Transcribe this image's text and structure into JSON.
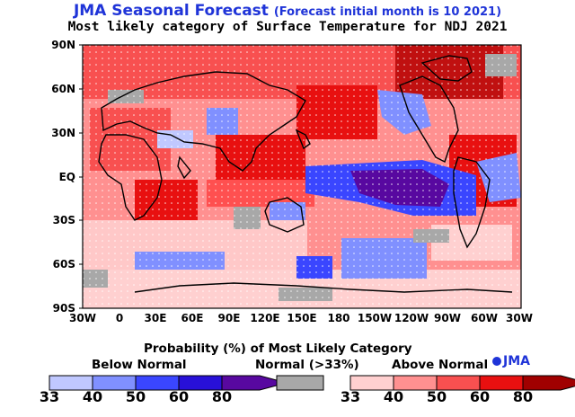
{
  "title": {
    "main": "JMA Seasonal Forecast",
    "sub": "(Forecast initial month is 10 2021)",
    "line2": "Most likely category of Surface Temperature for NDJ 2021"
  },
  "lat_labels": [
    "90N",
    "60N",
    "30N",
    "EQ",
    "30S",
    "60S",
    "90S"
  ],
  "lon_labels": [
    "30W",
    "0",
    "30E",
    "60E",
    "90E",
    "120E",
    "150E",
    "180",
    "150W",
    "120W",
    "90W",
    "60W",
    "30W"
  ],
  "legend": {
    "title": "Probability (%) of Most Likely Category",
    "below": "Below Normal",
    "normal": "Normal (>33%)",
    "above": "Above Normal",
    "below_ticks": [
      "33",
      "40",
      "50",
      "60",
      "80"
    ],
    "above_ticks": [
      "33",
      "40",
      "50",
      "60",
      "80"
    ],
    "logo": "JMA",
    "colors": {
      "below": [
        "#c0c8ff",
        "#8090ff",
        "#3a46ff",
        "#2810d8",
        "#5808a0"
      ],
      "normal": "#a8a8a8",
      "above": [
        "#ffd0d0",
        "#ff9090",
        "#f85050",
        "#e81010",
        "#a00000"
      ]
    }
  }
}
